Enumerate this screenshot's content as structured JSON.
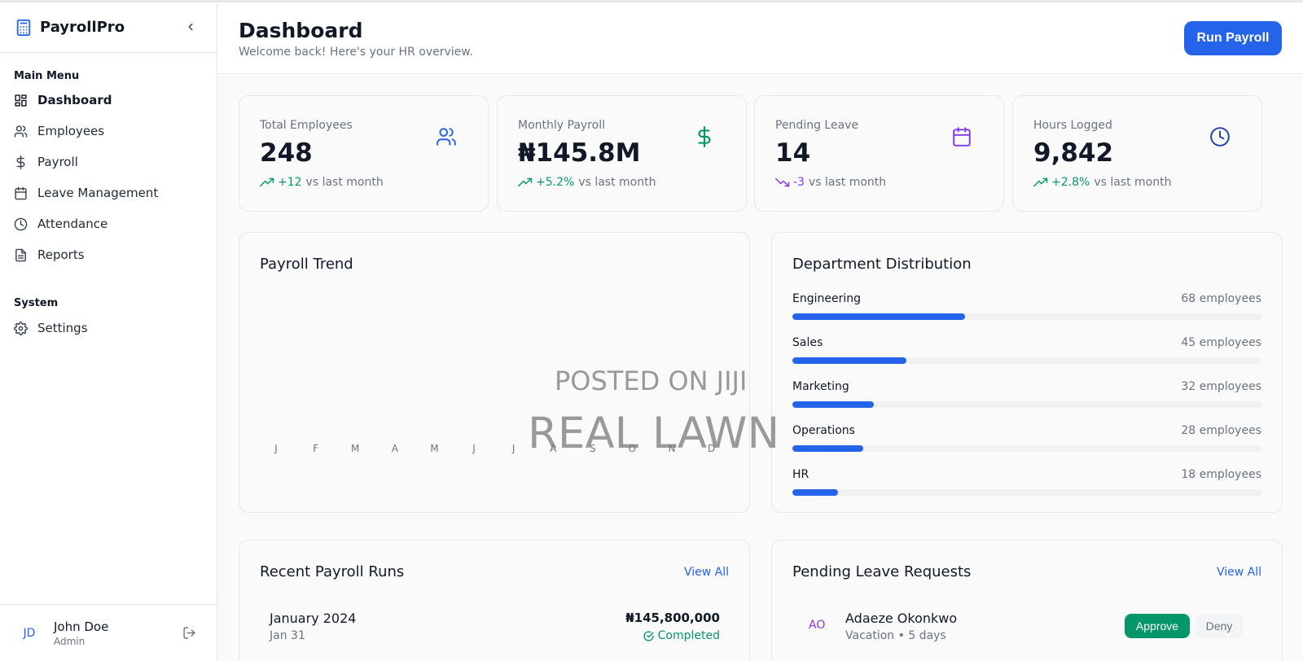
{
  "app": {
    "name": "PayrollPro"
  },
  "sidebar": {
    "main_menu_label": "Main Menu",
    "system_label": "System",
    "items": [
      {
        "label": "Dashboard",
        "icon": "grid-icon",
        "active": true
      },
      {
        "label": "Employees",
        "icon": "users-icon"
      },
      {
        "label": "Payroll",
        "icon": "dollar-icon"
      },
      {
        "label": "Leave Management",
        "icon": "calendar-icon"
      },
      {
        "label": "Attendance",
        "icon": "clock-icon"
      },
      {
        "label": "Reports",
        "icon": "document-icon"
      }
    ],
    "system_items": [
      {
        "label": "Settings",
        "icon": "gear-icon"
      }
    ]
  },
  "user": {
    "initials": "JD",
    "name": "John Doe",
    "role": "Admin"
  },
  "header": {
    "title": "Dashboard",
    "subtitle": "Welcome back! Here's your HR overview.",
    "run_payroll_label": "Run Payroll"
  },
  "stats": [
    {
      "label": "Total Employees",
      "value": "248",
      "delta": "+12",
      "trend_text": "vs last month",
      "direction": "up",
      "icon": "users-icon",
      "color": "#2563eb"
    },
    {
      "label": "Monthly Payroll",
      "value": "₦145.8M",
      "delta": "+5.2%",
      "trend_text": "vs last month",
      "direction": "up",
      "icon": "dollar-icon",
      "color": "#059669"
    },
    {
      "label": "Pending Leave",
      "value": "14",
      "delta": "-3",
      "trend_text": "vs last month",
      "direction": "down",
      "icon": "calendar-icon",
      "color": "#7c3aed"
    },
    {
      "label": "Hours Logged",
      "value": "9,842",
      "delta": "+2.8%",
      "trend_text": "vs last month",
      "direction": "up",
      "icon": "clock-icon",
      "color": "#1e40af"
    }
  ],
  "payroll_trend": {
    "title": "Payroll Trend",
    "months": [
      "J",
      "F",
      "M",
      "A",
      "M",
      "J",
      "J",
      "A",
      "S",
      "O",
      "N",
      "D"
    ]
  },
  "departments": {
    "title": "Department Distribution",
    "items": [
      {
        "name": "Engineering",
        "count_label": "68 employees",
        "count": 68
      },
      {
        "name": "Sales",
        "count_label": "45 employees",
        "count": 45
      },
      {
        "name": "Marketing",
        "count_label": "32 employees",
        "count": 32
      },
      {
        "name": "Operations",
        "count_label": "28 employees",
        "count": 28
      },
      {
        "name": "HR",
        "count_label": "18 employees",
        "count": 18
      }
    ],
    "scale_max": 185
  },
  "recent_runs": {
    "title": "Recent Payroll Runs",
    "view_all": "View All",
    "items": [
      {
        "period": "January 2024",
        "date": "Jan 31",
        "amount": "₦145,800,000",
        "status": "Completed"
      }
    ]
  },
  "leave_requests": {
    "title": "Pending Leave Requests",
    "view_all": "View All",
    "items": [
      {
        "initials": "AO",
        "name": "Adaeze Okonkwo",
        "detail": "Vacation • 5 days",
        "approve": "Approve",
        "deny": "Deny"
      }
    ]
  },
  "watermark": {
    "line1": "POSTED ON JIJI",
    "line2": "REAL LAWN"
  },
  "colors": {
    "accent": "#2563eb",
    "success": "#059669",
    "purple": "#7c3aed"
  }
}
